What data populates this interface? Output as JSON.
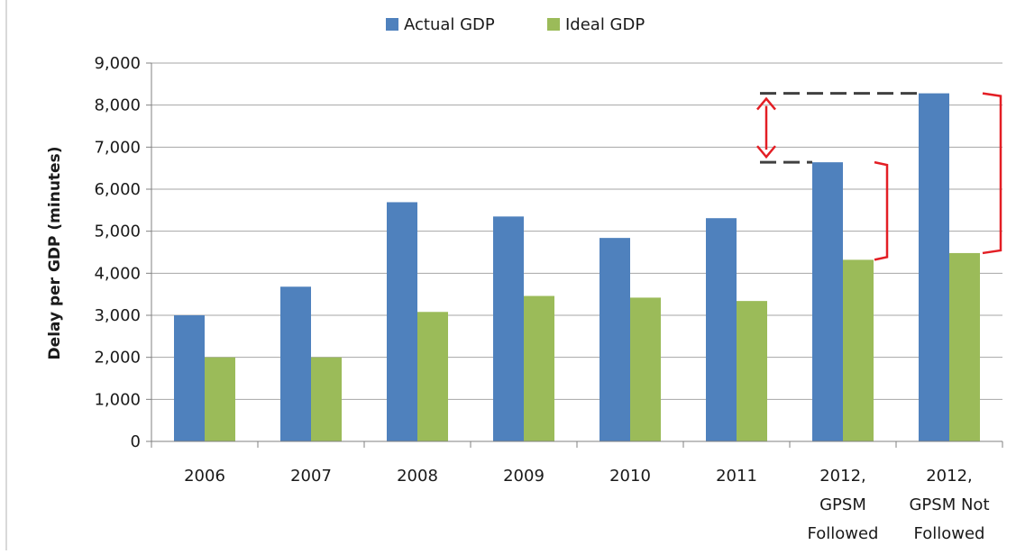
{
  "chart_data": {
    "type": "bar",
    "title": "",
    "xlabel": "",
    "ylabel": "Delay per GDP (minutes)",
    "ylim": [
      0,
      9000
    ],
    "yticks": [
      0,
      1000,
      2000,
      3000,
      4000,
      5000,
      6000,
      7000,
      8000,
      9000
    ],
    "ytick_labels": [
      "0",
      "1,000",
      "2,000",
      "3,000",
      "4,000",
      "5,000",
      "6,000",
      "7,000",
      "8,000",
      "9,000"
    ],
    "categories": [
      [
        "2006"
      ],
      [
        "2007"
      ],
      [
        "2008"
      ],
      [
        "2009"
      ],
      [
        "2010"
      ],
      [
        "2011"
      ],
      [
        "2012,",
        "GPSM",
        "Followed"
      ],
      [
        "2012,",
        "GPSM Not",
        "Followed"
      ]
    ],
    "series": [
      {
        "name": "Actual GDP",
        "color": "#4F81BD",
        "values": [
          3000,
          3680,
          5690,
          5350,
          4840,
          5310,
          6640,
          8280
        ]
      },
      {
        "name": "Ideal GDP",
        "color": "#9BBB59",
        "values": [
          2000,
          2000,
          3080,
          3460,
          3420,
          3340,
          4320,
          4480
        ]
      }
    ],
    "grid": true,
    "legend": "top-center",
    "annotations": [
      {
        "type": "dashed-guideline",
        "at_value": 8280,
        "color": "#404040"
      },
      {
        "type": "dashed-guideline",
        "at_value": 6640,
        "color": "#404040"
      },
      {
        "type": "double-arrow",
        "from_value": 8280,
        "to_value": 6640,
        "color": "#E31E24"
      },
      {
        "type": "bracket",
        "from_value": 6640,
        "to_value": 4320,
        "color": "#E31E24"
      },
      {
        "type": "bracket",
        "from_value": 8280,
        "to_value": 4480,
        "color": "#E31E24"
      }
    ]
  }
}
